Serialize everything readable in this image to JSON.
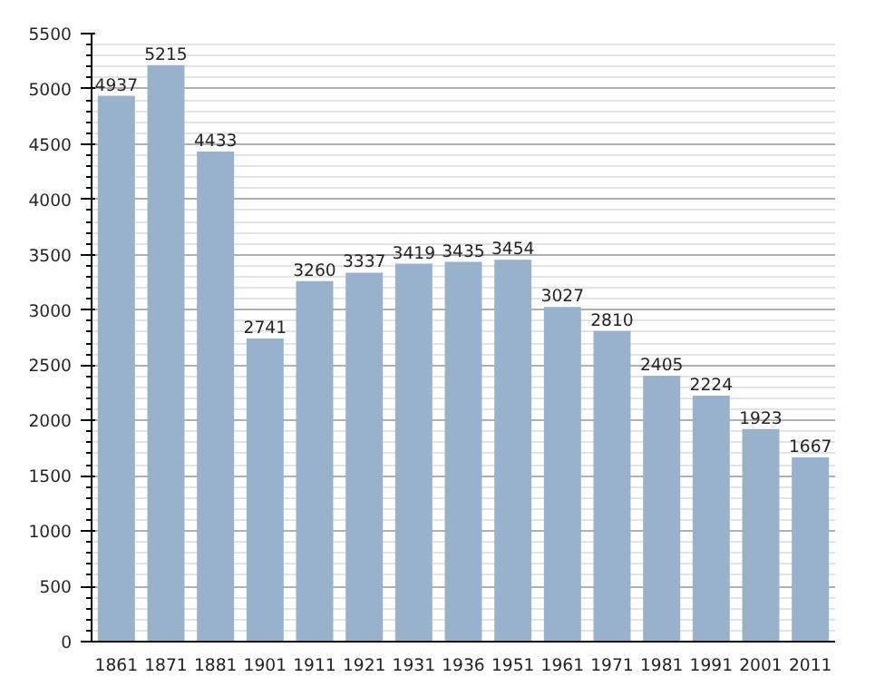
{
  "chart_data": {
    "type": "bar",
    "categories": [
      "1861",
      "1871",
      "1881",
      "1901",
      "1911",
      "1921",
      "1931",
      "1936",
      "1951",
      "1961",
      "1971",
      "1981",
      "1991",
      "2001",
      "2011"
    ],
    "values": [
      4937,
      5215,
      4433,
      2741,
      3260,
      3337,
      3419,
      3435,
      3454,
      3027,
      2810,
      2405,
      2224,
      1923,
      1667
    ],
    "color": "#99b2cc",
    "data_labels": true,
    "ylim": [
      0,
      5500
    ],
    "yticks": [
      0,
      {
        "value": 100,
        "label": null
      },
      {
        "value": 200,
        "label": null
      },
      {
        "value": 300,
        "label": null
      },
      {
        "value": 400,
        "label": null
      },
      500,
      {
        "value": 600,
        "label": null
      },
      {
        "value": 700,
        "label": null
      },
      {
        "value": 800,
        "label": null
      },
      {
        "value": 900,
        "label": null
      },
      1000,
      {
        "value": 1100,
        "label": null
      },
      {
        "value": 1200,
        "label": null
      },
      {
        "value": 1300,
        "label": null
      },
      {
        "value": 1400,
        "label": null
      },
      1500,
      {
        "value": 1600,
        "label": null
      },
      {
        "value": 1700,
        "label": null
      },
      {
        "value": 1800,
        "label": null
      },
      {
        "value": 1900,
        "label": null
      },
      2000,
      {
        "value": 2100,
        "label": null
      },
      {
        "value": 2200,
        "label": null
      },
      {
        "value": 2300,
        "label": null
      },
      {
        "value": 2400,
        "label": null
      },
      2500,
      {
        "value": 2600,
        "label": null
      },
      {
        "value": 2700,
        "label": null
      },
      {
        "value": 2800,
        "label": null
      },
      {
        "value": 2900,
        "label": null
      },
      3000,
      {
        "value": 3100,
        "label": null
      },
      {
        "value": 3200,
        "label": null
      },
      {
        "value": 3300,
        "label": null
      },
      {
        "value": 3400,
        "label": null
      },
      3500,
      {
        "value": 3600,
        "label": null
      },
      {
        "value": 3700,
        "label": null
      },
      {
        "value": 3800,
        "label": null
      },
      {
        "value": 3900,
        "label": null
      },
      4000,
      {
        "value": 4100,
        "label": null
      },
      {
        "value": 4200,
        "label": null
      },
      {
        "value": 4300,
        "label": null
      },
      {
        "value": 4400,
        "label": null
      },
      4500,
      {
        "value": 4600,
        "label": null
      },
      {
        "value": 4700,
        "label": null
      },
      {
        "value": 4800,
        "label": null
      },
      {
        "value": 4900,
        "label": null
      },
      5000,
      {
        "value": 5100,
        "label": null
      },
      {
        "value": 5200,
        "label": null
      },
      {
        "value": 5300,
        "label": null
      },
      {
        "value": 5400,
        "label": null
      },
      5500
    ],
    "grid": "y"
  }
}
